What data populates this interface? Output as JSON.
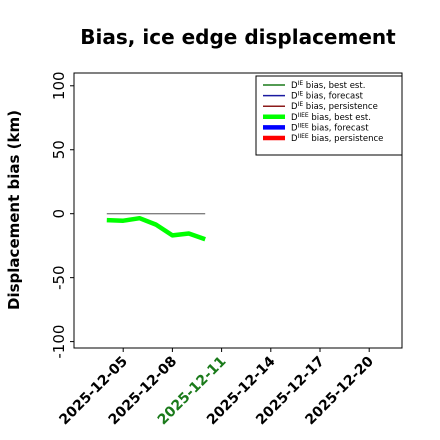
{
  "chart_data": {
    "type": "line",
    "title": "Bias, ice edge displacement",
    "ylabel": "Displacement bias (km)",
    "xlabel": "",
    "ylim": [
      -105,
      110
    ],
    "yticks": [
      -100,
      -50,
      0,
      50,
      100
    ],
    "xlim": [
      "2025-12-02",
      "2025-12-22"
    ],
    "xticks": [
      {
        "label": "2025-12-05",
        "color": "#000000"
      },
      {
        "label": "2025-12-08",
        "color": "#000000"
      },
      {
        "label": "2025-12-11",
        "color": "#1a7a1a"
      },
      {
        "label": "2025-12-14",
        "color": "#000000"
      },
      {
        "label": "2025-12-17",
        "color": "#000000"
      },
      {
        "label": "2025-12-20",
        "color": "#000000"
      }
    ],
    "grid": false,
    "legend_position": "top-right",
    "series": [
      {
        "name": "D^IE bias, best est.",
        "sup": "IE",
        "base": "D",
        "rest": " bias, best est.",
        "color": "#1a7a1a",
        "width": 1.5,
        "x": [],
        "y": []
      },
      {
        "name": "D^IE bias, forecast",
        "sup": "IE",
        "base": "D",
        "rest": " bias, forecast",
        "color": "#1a1aa0",
        "width": 1.5,
        "x": [],
        "y": []
      },
      {
        "name": "D^IE bias, persistence",
        "sup": "IE",
        "base": "D",
        "rest": " bias, persistence",
        "color": "#8b1a1a",
        "width": 1.5,
        "x": [],
        "y": []
      },
      {
        "name": "D^IIEE bias, best est.",
        "sup": "IIEE",
        "base": "D",
        "rest": " bias, best est.",
        "color": "#00ff00",
        "width": 4.5,
        "x": [
          "2025-12-04",
          "2025-12-05",
          "2025-12-06",
          "2025-12-07",
          "2025-12-08",
          "2025-12-09",
          "2025-12-10"
        ],
        "y": [
          -5,
          -5.5,
          -3.5,
          -8.5,
          -17,
          -15.5,
          -20
        ]
      },
      {
        "name": "D^IIEE bias, forecast",
        "sup": "IIEE",
        "base": "D",
        "rest": " bias, forecast",
        "color": "#0000ff",
        "width": 4.5,
        "x": [],
        "y": []
      },
      {
        "name": "D^IIEE bias, persistence",
        "sup": "IIEE",
        "base": "D",
        "rest": " bias, persistence",
        "color": "#ff0000",
        "width": 4.5,
        "x": [],
        "y": []
      }
    ],
    "reference_lines": [
      {
        "color": "#808080",
        "x": [
          "2025-12-04",
          "2025-12-10"
        ],
        "y": [
          0,
          0
        ]
      }
    ]
  }
}
